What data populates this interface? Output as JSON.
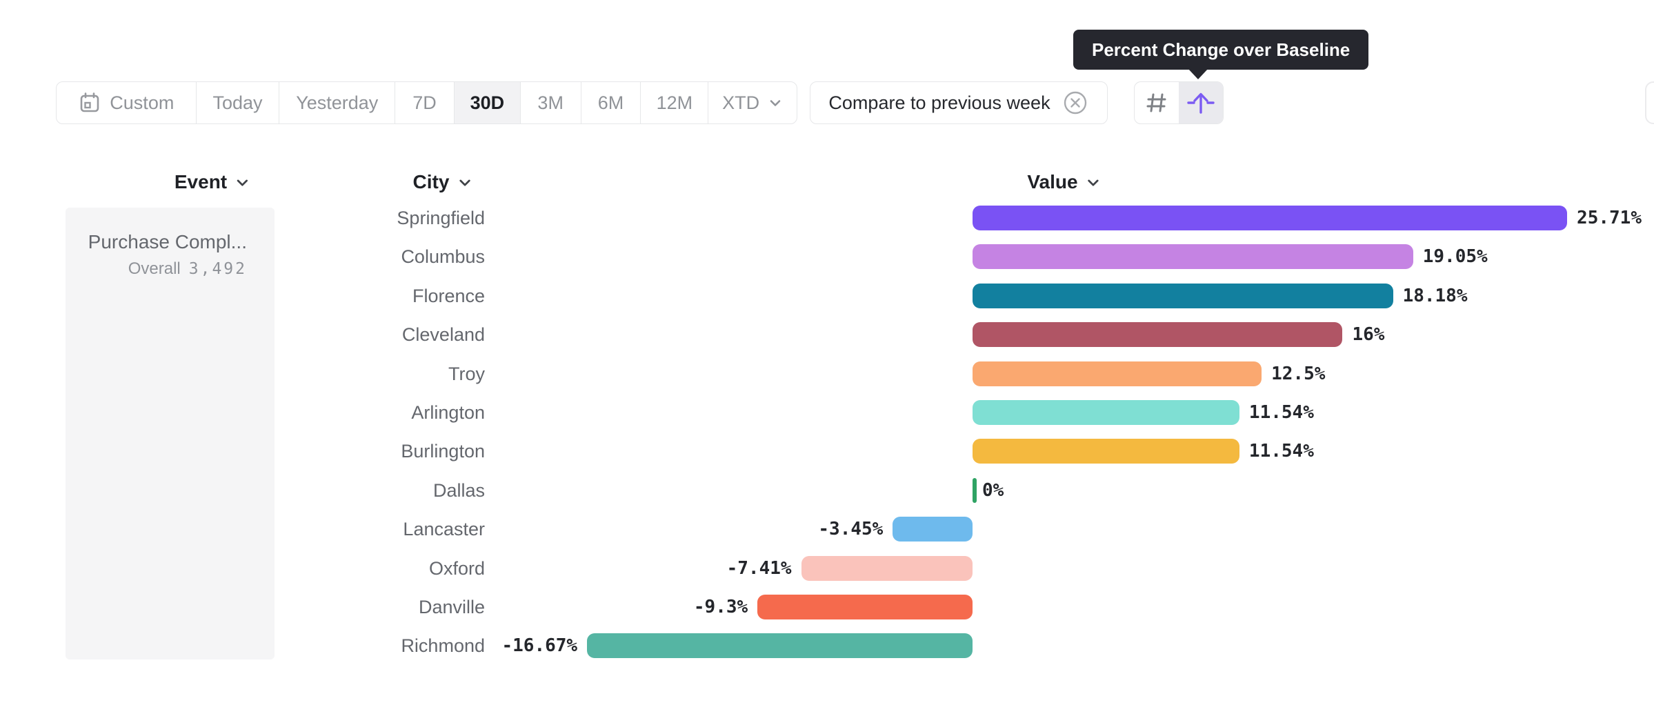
{
  "tooltip": {
    "text": "Percent Change over Baseline"
  },
  "toolbar": {
    "date_range": {
      "items": [
        {
          "label": "Custom",
          "selected": false
        },
        {
          "label": "Today",
          "selected": false
        },
        {
          "label": "Yesterday",
          "selected": false
        },
        {
          "label": "7D",
          "selected": false
        },
        {
          "label": "30D",
          "selected": true
        },
        {
          "label": "3M",
          "selected": false
        },
        {
          "label": "6M",
          "selected": false
        },
        {
          "label": "12M",
          "selected": false
        },
        {
          "label": "XTD",
          "selected": false
        }
      ]
    },
    "compare": {
      "label": "Compare to previous week",
      "close_icon": "x-circle-icon"
    },
    "view_toggle": {
      "options": [
        "number-grid-icon",
        "percent-baseline-arrow-icon"
      ],
      "active": "percent-baseline-arrow-icon",
      "accent_color": "#7b5bf2",
      "active_bg": "#eaeaee"
    }
  },
  "columns": {
    "event": "Event",
    "city": "City",
    "value": "Value"
  },
  "event_card": {
    "title": "Purchase Compl...",
    "overall_label": "Overall",
    "overall_value": "3,492"
  },
  "chart_data": {
    "type": "bar",
    "orientation": "horizontal",
    "unit": "%",
    "baseline": 0,
    "xlim": [
      -16.67,
      25.71
    ],
    "grid": false,
    "legend": "none",
    "series_name": "Percent Change over Baseline",
    "categories": [
      "Springfield",
      "Columbus",
      "Florence",
      "Cleveland",
      "Troy",
      "Arlington",
      "Burlington",
      "Dallas",
      "Lancaster",
      "Oxford",
      "Danville",
      "Richmond"
    ],
    "values": [
      25.71,
      19.05,
      18.18,
      16,
      12.5,
      11.54,
      11.54,
      0,
      -3.45,
      -7.41,
      -9.3,
      -16.67
    ],
    "labels": [
      "25.71%",
      "19.05%",
      "18.18%",
      "16%",
      "12.5%",
      "11.54%",
      "11.54%",
      "0%",
      "-3.45%",
      "-7.41%",
      "-9.3%",
      "-16.67%"
    ],
    "colors": [
      "#7a52f4",
      "#c583e3",
      "#12809f",
      "#b05565",
      "#faa870",
      "#7fdfd3",
      "#f4b93f",
      "#2fa364",
      "#6ebaed",
      "#fac3bb",
      "#f56a4d",
      "#55b5a3"
    ],
    "zero_bar_color": "#2fa364"
  }
}
